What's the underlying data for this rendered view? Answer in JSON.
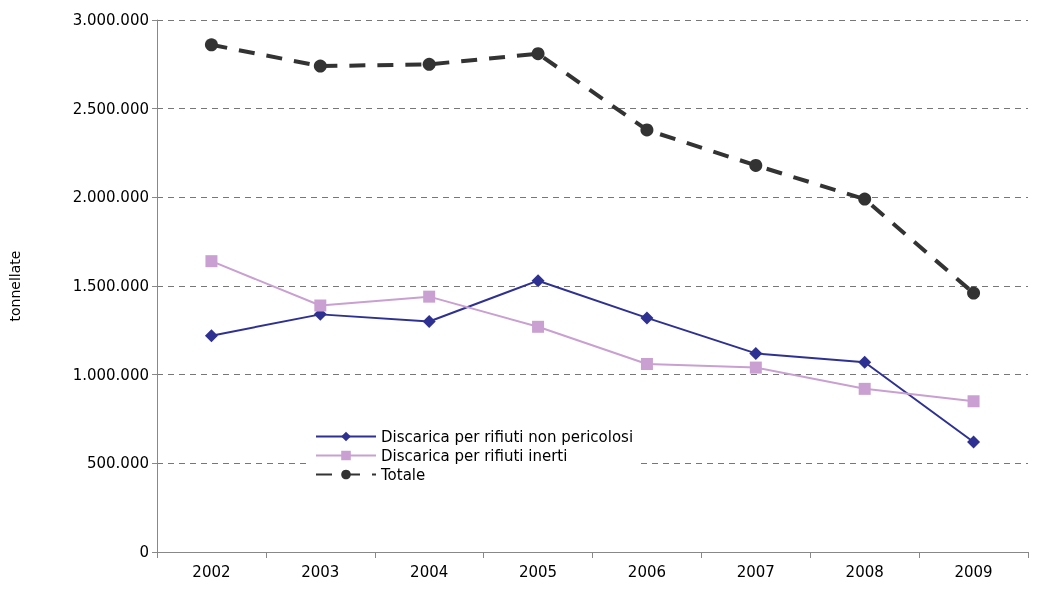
{
  "chart_data": {
    "type": "line",
    "ylabel": "tonnellate",
    "categories": [
      "2002",
      "2003",
      "2004",
      "2005",
      "2006",
      "2007",
      "2008",
      "2009"
    ],
    "series": [
      {
        "name": "Discarica per rifiuti non pericolosi",
        "color": "#2e3192",
        "marker": "diamond",
        "line_style": "solid",
        "values": [
          1220000,
          1340000,
          1300000,
          1530000,
          1320000,
          1120000,
          1070000,
          620000
        ]
      },
      {
        "name": "Discarica per rifiuti inerti",
        "color": "#c9a0d1",
        "marker": "square",
        "line_style": "solid",
        "values": [
          1640000,
          1390000,
          1440000,
          1270000,
          1060000,
          1040000,
          920000,
          850000
        ]
      },
      {
        "name": "Totale",
        "color": "#333333",
        "marker": "circle",
        "line_style": "dashed",
        "values": [
          2860000,
          2740000,
          2750000,
          2810000,
          2380000,
          2180000,
          1990000,
          1460000
        ]
      }
    ],
    "ylim": [
      0,
      3000000
    ],
    "yticks": [
      {
        "value": 0,
        "label": "0"
      },
      {
        "value": 500000,
        "label": "500.000"
      },
      {
        "value": 1000000,
        "label": "1.000.000"
      },
      {
        "value": 1500000,
        "label": "1.500.000"
      },
      {
        "value": 2000000,
        "label": "2.000.000"
      },
      {
        "value": 2500000,
        "label": "2.500.000"
      },
      {
        "value": 3000000,
        "label": "3.000.000"
      }
    ],
    "grid": "y",
    "legend": "bottom left"
  }
}
